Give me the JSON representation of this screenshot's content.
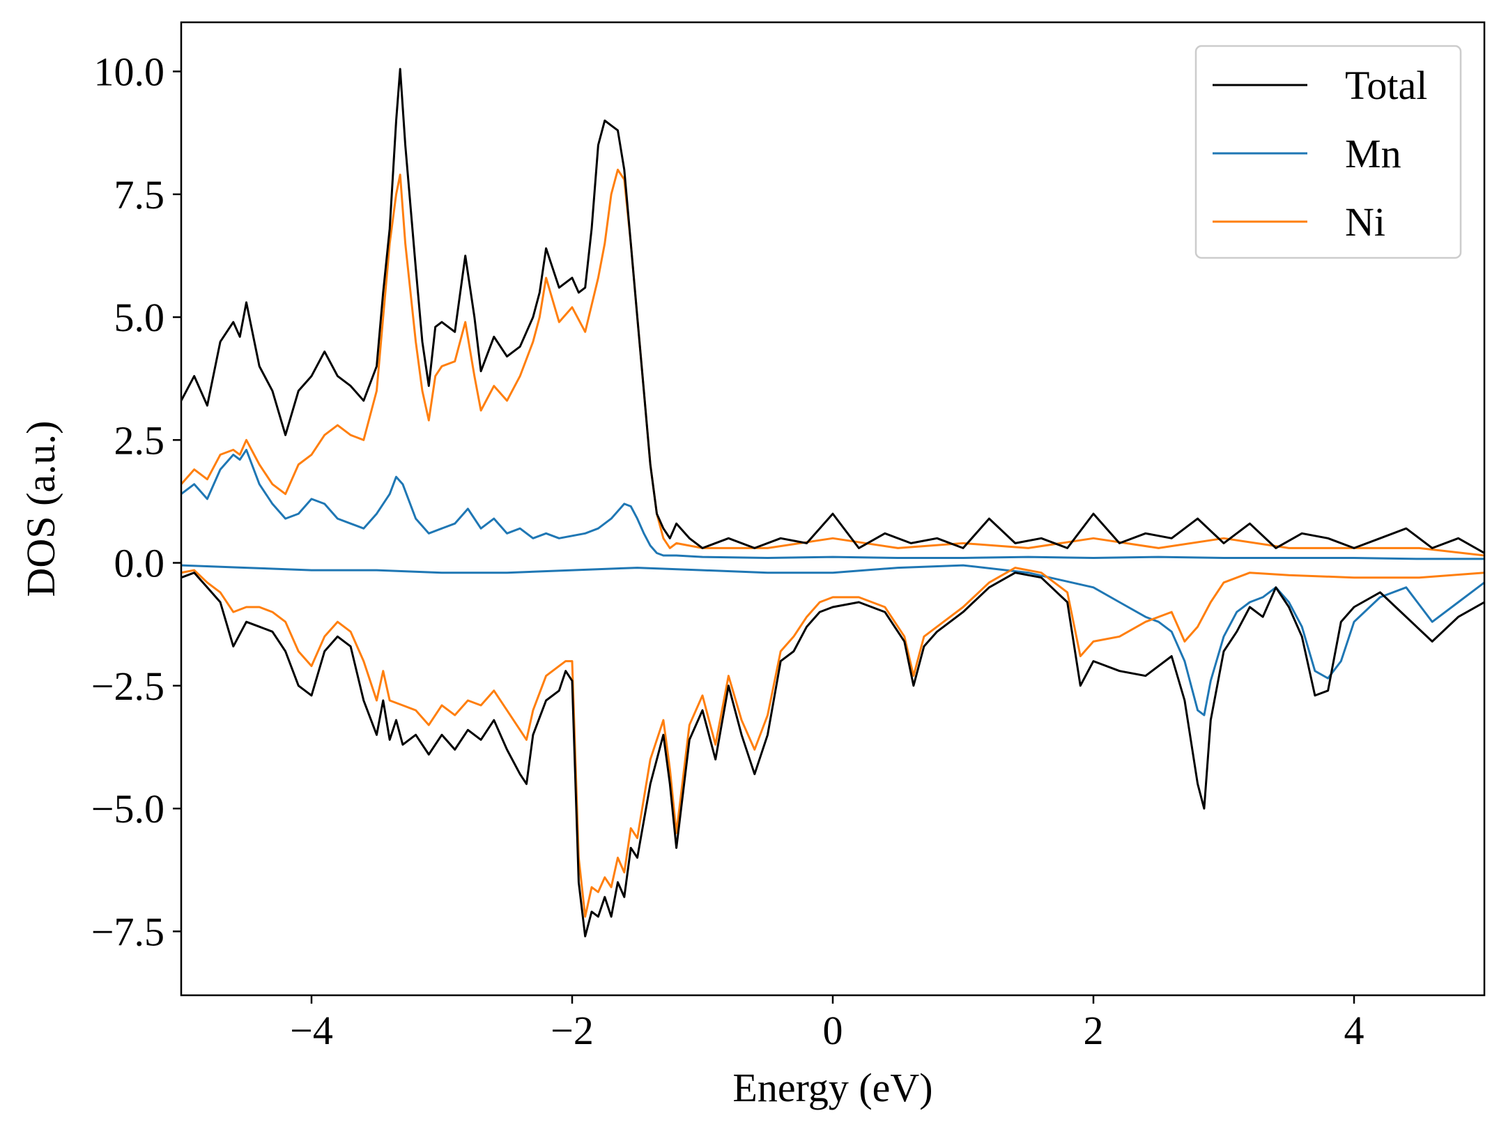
{
  "chart_data": {
    "type": "line",
    "title": "",
    "xlabel": "Energy (eV)",
    "ylabel": "DOS (a.u.)",
    "xlim": [
      -5,
      5
    ],
    "ylim": [
      -8.8,
      11.0
    ],
    "x_ticks": [
      -4,
      -2,
      0,
      2,
      4
    ],
    "x_tick_labels": [
      "−4",
      "−2",
      "0",
      "2",
      "4"
    ],
    "y_ticks": [
      -7.5,
      -5.0,
      -2.5,
      0.0,
      2.5,
      5.0,
      7.5,
      10.0
    ],
    "y_tick_labels": [
      "−7.5",
      "−5.0",
      "−2.5",
      "0.0",
      "2.5",
      "5.0",
      "7.5",
      "10.0"
    ],
    "grid": false,
    "legend_position": "top-right",
    "series": [
      {
        "name": "Total",
        "color": "#000000",
        "up": {
          "x": [
            -5.0,
            -4.9,
            -4.8,
            -4.7,
            -4.6,
            -4.55,
            -4.5,
            -4.4,
            -4.3,
            -4.2,
            -4.1,
            -4.0,
            -3.9,
            -3.8,
            -3.7,
            -3.6,
            -3.5,
            -3.45,
            -3.4,
            -3.35,
            -3.32,
            -3.28,
            -3.2,
            -3.15,
            -3.1,
            -3.05,
            -3.0,
            -2.9,
            -2.82,
            -2.75,
            -2.7,
            -2.6,
            -2.5,
            -2.4,
            -2.3,
            -2.25,
            -2.2,
            -2.1,
            -2.0,
            -1.95,
            -1.9,
            -1.85,
            -1.8,
            -1.75,
            -1.7,
            -1.65,
            -1.6,
            -1.55,
            -1.5,
            -1.45,
            -1.4,
            -1.35,
            -1.3,
            -1.25,
            -1.2,
            -1.1,
            -1.0,
            -0.8,
            -0.6,
            -0.4,
            -0.2,
            0.0,
            0.2,
            0.4,
            0.6,
            0.8,
            1.0,
            1.2,
            1.4,
            1.6,
            1.8,
            2.0,
            2.2,
            2.4,
            2.6,
            2.8,
            3.0,
            3.2,
            3.4,
            3.6,
            3.8,
            4.0,
            4.2,
            4.4,
            4.6,
            4.8,
            5.0
          ],
          "y": [
            3.3,
            3.8,
            3.2,
            4.5,
            4.9,
            4.6,
            5.3,
            4.0,
            3.5,
            2.6,
            3.5,
            3.8,
            4.3,
            3.8,
            3.6,
            3.3,
            4.0,
            5.5,
            6.8,
            9.0,
            10.05,
            8.5,
            6.0,
            4.5,
            3.6,
            4.8,
            4.9,
            4.7,
            6.25,
            5.0,
            3.9,
            4.6,
            4.2,
            4.4,
            5.0,
            5.5,
            6.4,
            5.6,
            5.8,
            5.5,
            5.6,
            6.8,
            8.5,
            9.0,
            8.9,
            8.8,
            8.0,
            6.5,
            5.0,
            3.5,
            2.0,
            1.0,
            0.7,
            0.5,
            0.8,
            0.5,
            0.3,
            0.5,
            0.3,
            0.5,
            0.4,
            1.0,
            0.3,
            0.6,
            0.4,
            0.5,
            0.3,
            0.9,
            0.4,
            0.5,
            0.3,
            1.0,
            0.4,
            0.6,
            0.5,
            0.9,
            0.4,
            0.8,
            0.3,
            0.6,
            0.5,
            0.3,
            0.5,
            0.7,
            0.3,
            0.5,
            0.2
          ]
        },
        "down": {
          "x": [
            -5.0,
            -4.9,
            -4.8,
            -4.7,
            -4.6,
            -4.5,
            -4.4,
            -4.3,
            -4.2,
            -4.1,
            -4.0,
            -3.9,
            -3.8,
            -3.7,
            -3.6,
            -3.5,
            -3.45,
            -3.4,
            -3.35,
            -3.3,
            -3.2,
            -3.1,
            -3.0,
            -2.9,
            -2.8,
            -2.7,
            -2.6,
            -2.5,
            -2.4,
            -2.35,
            -2.3,
            -2.2,
            -2.1,
            -2.05,
            -2.0,
            -1.95,
            -1.9,
            -1.85,
            -1.8,
            -1.75,
            -1.7,
            -1.65,
            -1.6,
            -1.55,
            -1.5,
            -1.4,
            -1.3,
            -1.25,
            -1.2,
            -1.1,
            -1.0,
            -0.9,
            -0.8,
            -0.7,
            -0.6,
            -0.5,
            -0.4,
            -0.3,
            -0.2,
            -0.1,
            0.0,
            0.2,
            0.4,
            0.55,
            0.62,
            0.7,
            0.8,
            1.0,
            1.2,
            1.4,
            1.6,
            1.8,
            1.9,
            2.0,
            2.2,
            2.4,
            2.6,
            2.7,
            2.8,
            2.85,
            2.9,
            3.0,
            3.1,
            3.2,
            3.3,
            3.4,
            3.5,
            3.6,
            3.7,
            3.8,
            3.9,
            4.0,
            4.2,
            4.4,
            4.6,
            4.8,
            5.0
          ],
          "y": [
            -0.3,
            -0.2,
            -0.5,
            -0.8,
            -1.7,
            -1.2,
            -1.3,
            -1.4,
            -1.8,
            -2.5,
            -2.7,
            -1.8,
            -1.5,
            -1.7,
            -2.8,
            -3.5,
            -2.8,
            -3.6,
            -3.2,
            -3.7,
            -3.5,
            -3.9,
            -3.5,
            -3.8,
            -3.4,
            -3.6,
            -3.2,
            -3.8,
            -4.3,
            -4.5,
            -3.5,
            -2.8,
            -2.6,
            -2.2,
            -2.4,
            -6.5,
            -7.6,
            -7.1,
            -7.2,
            -6.8,
            -7.2,
            -6.5,
            -6.8,
            -5.8,
            -6.0,
            -4.5,
            -3.5,
            -4.5,
            -5.8,
            -3.6,
            -3.0,
            -4.0,
            -2.5,
            -3.5,
            -4.3,
            -3.5,
            -2.0,
            -1.8,
            -1.3,
            -1.0,
            -0.9,
            -0.8,
            -1.0,
            -1.6,
            -2.5,
            -1.7,
            -1.4,
            -1.0,
            -0.5,
            -0.2,
            -0.3,
            -0.8,
            -2.5,
            -2.0,
            -2.2,
            -2.3,
            -1.9,
            -2.8,
            -4.5,
            -5.0,
            -3.2,
            -1.8,
            -1.4,
            -0.9,
            -1.1,
            -0.5,
            -0.9,
            -1.5,
            -2.7,
            -2.6,
            -1.2,
            -0.9,
            -0.6,
            -1.1,
            -1.6,
            -1.1,
            -0.8
          ]
        }
      },
      {
        "name": "Mn",
        "color": "#1f77b4",
        "up": {
          "x": [
            -5.0,
            -4.9,
            -4.8,
            -4.7,
            -4.6,
            -4.55,
            -4.5,
            -4.4,
            -4.3,
            -4.2,
            -4.1,
            -4.0,
            -3.9,
            -3.8,
            -3.7,
            -3.6,
            -3.5,
            -3.4,
            -3.35,
            -3.3,
            -3.2,
            -3.1,
            -3.0,
            -2.9,
            -2.8,
            -2.7,
            -2.6,
            -2.5,
            -2.4,
            -2.3,
            -2.2,
            -2.1,
            -2.0,
            -1.9,
            -1.8,
            -1.7,
            -1.6,
            -1.55,
            -1.5,
            -1.45,
            -1.4,
            -1.35,
            -1.3,
            -1.2,
            -1.0,
            -0.5,
            0.0,
            0.5,
            1.0,
            1.5,
            2.0,
            2.5,
            3.0,
            3.5,
            4.0,
            4.5,
            5.0
          ],
          "y": [
            1.4,
            1.6,
            1.3,
            1.9,
            2.2,
            2.1,
            2.3,
            1.6,
            1.2,
            0.9,
            1.0,
            1.3,
            1.2,
            0.9,
            0.8,
            0.7,
            1.0,
            1.4,
            1.75,
            1.6,
            0.9,
            0.6,
            0.7,
            0.8,
            1.1,
            0.7,
            0.9,
            0.6,
            0.7,
            0.5,
            0.6,
            0.5,
            0.55,
            0.6,
            0.7,
            0.9,
            1.2,
            1.15,
            0.9,
            0.6,
            0.35,
            0.2,
            0.15,
            0.15,
            0.12,
            0.1,
            0.12,
            0.1,
            0.1,
            0.12,
            0.1,
            0.12,
            0.1,
            0.1,
            0.1,
            0.08,
            0.08
          ]
        },
        "down": {
          "x": [
            -5.0,
            -4.5,
            -4.0,
            -3.5,
            -3.0,
            -2.5,
            -2.0,
            -1.5,
            -1.0,
            -0.5,
            0.0,
            0.5,
            1.0,
            1.5,
            2.0,
            2.2,
            2.4,
            2.5,
            2.6,
            2.7,
            2.8,
            2.85,
            2.9,
            3.0,
            3.1,
            3.2,
            3.3,
            3.4,
            3.5,
            3.6,
            3.7,
            3.8,
            3.9,
            4.0,
            4.2,
            4.4,
            4.6,
            4.8,
            5.0
          ],
          "y": [
            -0.05,
            -0.1,
            -0.15,
            -0.15,
            -0.2,
            -0.2,
            -0.15,
            -0.1,
            -0.15,
            -0.2,
            -0.2,
            -0.1,
            -0.05,
            -0.2,
            -0.5,
            -0.8,
            -1.1,
            -1.2,
            -1.4,
            -2.0,
            -3.0,
            -3.1,
            -2.4,
            -1.5,
            -1.0,
            -0.8,
            -0.7,
            -0.5,
            -0.8,
            -1.3,
            -2.2,
            -2.35,
            -2.0,
            -1.2,
            -0.7,
            -0.5,
            -1.2,
            -0.8,
            -0.4
          ]
        }
      },
      {
        "name": "Ni",
        "color": "#ff7f0e",
        "up": {
          "x": [
            -5.0,
            -4.9,
            -4.8,
            -4.7,
            -4.6,
            -4.55,
            -4.5,
            -4.4,
            -4.3,
            -4.2,
            -4.1,
            -4.0,
            -3.9,
            -3.8,
            -3.7,
            -3.6,
            -3.5,
            -3.45,
            -3.4,
            -3.35,
            -3.32,
            -3.28,
            -3.2,
            -3.15,
            -3.1,
            -3.05,
            -3.0,
            -2.9,
            -2.82,
            -2.75,
            -2.7,
            -2.6,
            -2.5,
            -2.4,
            -2.3,
            -2.25,
            -2.2,
            -2.1,
            -2.0,
            -1.9,
            -1.8,
            -1.75,
            -1.7,
            -1.65,
            -1.6,
            -1.55,
            -1.5,
            -1.45,
            -1.4,
            -1.35,
            -1.3,
            -1.25,
            -1.2,
            -1.0,
            -0.5,
            0.0,
            0.5,
            1.0,
            1.5,
            2.0,
            2.5,
            3.0,
            3.5,
            4.0,
            4.5,
            5.0
          ],
          "y": [
            1.6,
            1.9,
            1.7,
            2.2,
            2.3,
            2.2,
            2.5,
            2.0,
            1.6,
            1.4,
            2.0,
            2.2,
            2.6,
            2.8,
            2.6,
            2.5,
            3.5,
            5.0,
            6.5,
            7.5,
            7.9,
            6.5,
            4.5,
            3.5,
            2.9,
            3.8,
            4.0,
            4.1,
            4.9,
            3.8,
            3.1,
            3.6,
            3.3,
            3.8,
            4.5,
            5.0,
            5.8,
            4.9,
            5.2,
            4.7,
            5.8,
            6.5,
            7.5,
            8.0,
            7.8,
            6.5,
            5.0,
            3.5,
            2.0,
            1.0,
            0.5,
            0.3,
            0.4,
            0.3,
            0.3,
            0.5,
            0.3,
            0.4,
            0.3,
            0.5,
            0.3,
            0.5,
            0.3,
            0.3,
            0.3,
            0.15
          ]
        },
        "down": {
          "x": [
            -5.0,
            -4.9,
            -4.8,
            -4.7,
            -4.6,
            -4.5,
            -4.4,
            -4.3,
            -4.2,
            -4.1,
            -4.0,
            -3.9,
            -3.8,
            -3.7,
            -3.6,
            -3.5,
            -3.45,
            -3.4,
            -3.3,
            -3.2,
            -3.1,
            -3.0,
            -2.9,
            -2.8,
            -2.7,
            -2.6,
            -2.5,
            -2.4,
            -2.35,
            -2.3,
            -2.2,
            -2.1,
            -2.05,
            -2.0,
            -1.95,
            -1.9,
            -1.85,
            -1.8,
            -1.75,
            -1.7,
            -1.65,
            -1.6,
            -1.55,
            -1.5,
            -1.4,
            -1.3,
            -1.25,
            -1.2,
            -1.1,
            -1.0,
            -0.9,
            -0.8,
            -0.7,
            -0.6,
            -0.5,
            -0.4,
            -0.3,
            -0.2,
            -0.1,
            0.0,
            0.2,
            0.4,
            0.55,
            0.62,
            0.7,
            0.8,
            1.0,
            1.2,
            1.4,
            1.6,
            1.8,
            1.9,
            2.0,
            2.2,
            2.4,
            2.6,
            2.7,
            2.8,
            2.9,
            3.0,
            3.2,
            3.5,
            4.0,
            4.5,
            5.0
          ],
          "y": [
            -0.2,
            -0.15,
            -0.4,
            -0.6,
            -1.0,
            -0.9,
            -0.9,
            -1.0,
            -1.2,
            -1.8,
            -2.1,
            -1.5,
            -1.2,
            -1.4,
            -2.0,
            -2.8,
            -2.2,
            -2.8,
            -2.9,
            -3.0,
            -3.3,
            -2.9,
            -3.1,
            -2.8,
            -2.9,
            -2.6,
            -3.0,
            -3.4,
            -3.6,
            -3.0,
            -2.3,
            -2.1,
            -2.0,
            -2.0,
            -6.0,
            -7.2,
            -6.6,
            -6.7,
            -6.4,
            -6.6,
            -6.0,
            -6.3,
            -5.4,
            -5.6,
            -4.0,
            -3.2,
            -4.2,
            -5.5,
            -3.3,
            -2.7,
            -3.7,
            -2.3,
            -3.2,
            -3.8,
            -3.1,
            -1.8,
            -1.5,
            -1.1,
            -0.8,
            -0.7,
            -0.7,
            -0.9,
            -1.5,
            -2.3,
            -1.5,
            -1.3,
            -0.9,
            -0.4,
            -0.1,
            -0.2,
            -0.6,
            -1.9,
            -1.6,
            -1.5,
            -1.2,
            -1.0,
            -1.6,
            -1.3,
            -0.8,
            -0.4,
            -0.2,
            -0.25,
            -0.3,
            -0.3,
            -0.2
          ]
        }
      }
    ]
  }
}
